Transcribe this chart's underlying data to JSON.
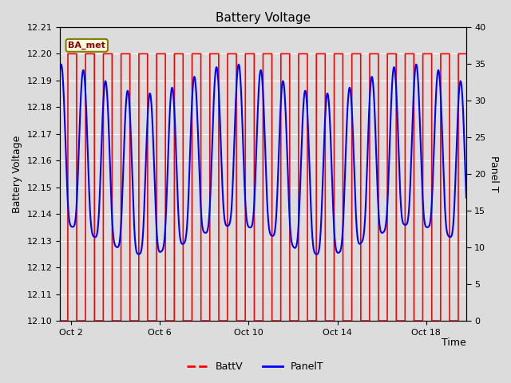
{
  "title": "Battery Voltage",
  "xlabel": "Time",
  "ylabel_left": "Battery Voltage",
  "ylabel_right": "Panel T",
  "annotation": "BA_met",
  "ylim_left": [
    12.1,
    12.21
  ],
  "ylim_right": [
    0,
    40
  ],
  "yticks_left": [
    12.1,
    12.11,
    12.12,
    12.13,
    12.14,
    12.15,
    12.16,
    12.17,
    12.18,
    12.19,
    12.2,
    12.21
  ],
  "yticks_right": [
    0,
    5,
    10,
    15,
    20,
    25,
    30,
    35,
    40
  ],
  "background_color": "#dcdcdc",
  "grid_color": "white",
  "batt_color": "red",
  "panel_color": "blue",
  "xtick_labels": [
    "Oct 2",
    "Oct 6",
    "Oct 10",
    "Oct 14",
    "Oct 18"
  ],
  "xtick_positions": [
    2,
    6,
    10,
    14,
    18
  ],
  "xlim": [
    1.5,
    19.8
  ],
  "figsize": [
    6.4,
    4.8
  ],
  "dpi": 100
}
